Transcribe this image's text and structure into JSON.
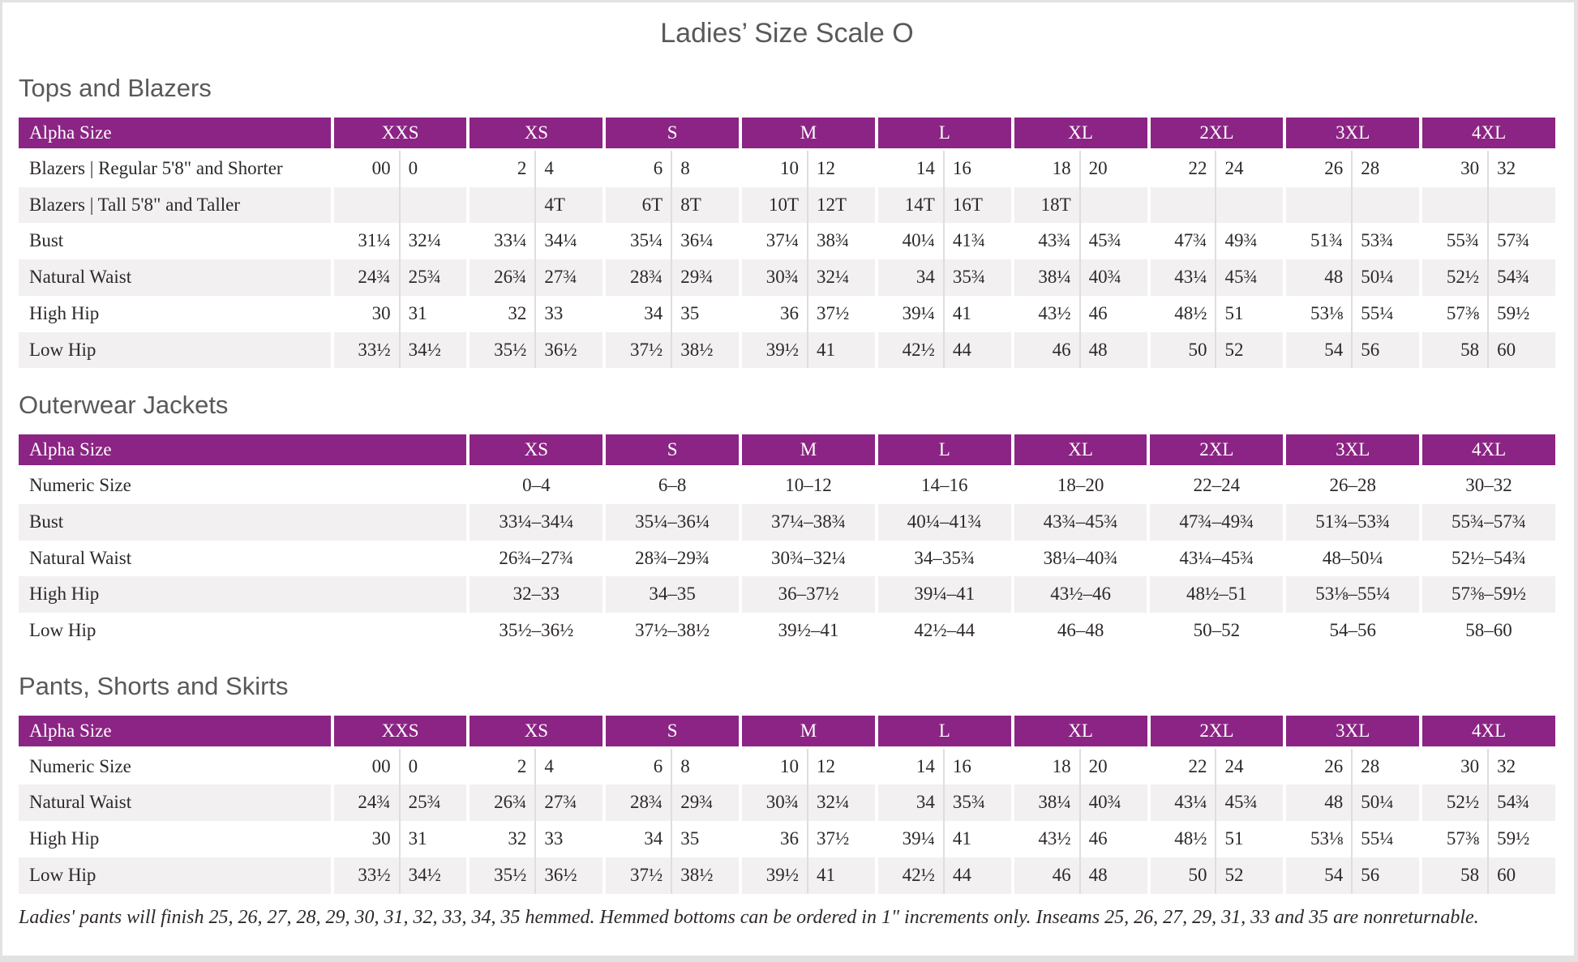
{
  "page": {
    "title": "Ladies’ Size Scale O",
    "footnote": "Ladies' pants will finish 25, 26, 27, 28, 29, 30, 31, 32, 33, 34, 35 hemmed. Hemmed bottoms can be ordered in 1\" increments only. Inseams 25, 26, 27, 29, 31, 33 and 35 are nonreturnable."
  },
  "colors": {
    "header_bg": "#8b2484",
    "row_stripe": "#f2f0f0",
    "heading_text": "#58595b",
    "body_text": "#2d2829"
  },
  "tables": [
    {
      "id": "tops-and-blazers",
      "heading": "Tops and Blazers",
      "corner_label": "Alpha Size",
      "paired": true,
      "columns": [
        "XXS",
        "XS",
        "S",
        "M",
        "L",
        "XL",
        "2XL",
        "3XL",
        "4XL"
      ],
      "rows": [
        {
          "label": "Blazers | Regular 5'8\" and Shorter",
          "values": [
            [
              "00",
              "0"
            ],
            [
              "2",
              "4"
            ],
            [
              "6",
              "8"
            ],
            [
              "10",
              "12"
            ],
            [
              "14",
              "16"
            ],
            [
              "18",
              "20"
            ],
            [
              "22",
              "24"
            ],
            [
              "26",
              "28"
            ],
            [
              "30",
              "32"
            ]
          ]
        },
        {
          "label": "Blazers | Tall 5'8\" and Taller",
          "values": [
            [
              "",
              ""
            ],
            [
              "",
              "4T"
            ],
            [
              "6T",
              "8T"
            ],
            [
              "10T",
              "12T"
            ],
            [
              "14T",
              "16T"
            ],
            [
              "18T",
              ""
            ],
            [
              "",
              ""
            ],
            [
              "",
              ""
            ],
            [
              "",
              ""
            ]
          ]
        },
        {
          "label": "Bust",
          "values": [
            [
              "31¼",
              "32¼"
            ],
            [
              "33¼",
              "34¼"
            ],
            [
              "35¼",
              "36¼"
            ],
            [
              "37¼",
              "38¾"
            ],
            [
              "40¼",
              "41¾"
            ],
            [
              "43¾",
              "45¾"
            ],
            [
              "47¾",
              "49¾"
            ],
            [
              "51¾",
              "53¾"
            ],
            [
              "55¾",
              "57¾"
            ]
          ]
        },
        {
          "label": "Natural Waist",
          "values": [
            [
              "24¾",
              "25¾"
            ],
            [
              "26¾",
              "27¾"
            ],
            [
              "28¾",
              "29¾"
            ],
            [
              "30¾",
              "32¼"
            ],
            [
              "34",
              "35¾"
            ],
            [
              "38¼",
              "40¾"
            ],
            [
              "43¼",
              "45¾"
            ],
            [
              "48",
              "50¼"
            ],
            [
              "52½",
              "54¾"
            ]
          ]
        },
        {
          "label": "High Hip",
          "values": [
            [
              "30",
              "31"
            ],
            [
              "32",
              "33"
            ],
            [
              "34",
              "35"
            ],
            [
              "36",
              "37½"
            ],
            [
              "39¼",
              "41"
            ],
            [
              "43½",
              "46"
            ],
            [
              "48½",
              "51"
            ],
            [
              "53⅛",
              "55¼"
            ],
            [
              "57⅜",
              "59½"
            ]
          ]
        },
        {
          "label": "Low Hip",
          "values": [
            [
              "33½",
              "34½"
            ],
            [
              "35½",
              "36½"
            ],
            [
              "37½",
              "38½"
            ],
            [
              "39½",
              "41"
            ],
            [
              "42½",
              "44"
            ],
            [
              "46",
              "48"
            ],
            [
              "50",
              "52"
            ],
            [
              "54",
              "56"
            ],
            [
              "58",
              "60"
            ]
          ]
        }
      ]
    },
    {
      "id": "outerwear-jackets",
      "heading": "Outerwear Jackets",
      "corner_label": "Alpha Size",
      "paired": false,
      "columns": [
        "XS",
        "S",
        "M",
        "L",
        "XL",
        "2XL",
        "3XL",
        "4XL"
      ],
      "rows": [
        {
          "label": "Numeric Size",
          "values": [
            "0–4",
            "6–8",
            "10–12",
            "14–16",
            "18–20",
            "22–24",
            "26–28",
            "30–32"
          ]
        },
        {
          "label": "Bust",
          "values": [
            "33¼–34¼",
            "35¼–36¼",
            "37¼–38¾",
            "40¼–41¾",
            "43¾–45¾",
            "47¾–49¾",
            "51¾–53¾",
            "55¾–57¾"
          ]
        },
        {
          "label": "Natural Waist",
          "values": [
            "26¾–27¾",
            "28¾–29¾",
            "30¾–32¼",
            "34–35¾",
            "38¼–40¾",
            "43¼–45¾",
            "48–50¼",
            "52½–54¾"
          ]
        },
        {
          "label": "High Hip",
          "values": [
            "32–33",
            "34–35",
            "36–37½",
            "39¼–41",
            "43½–46",
            "48½–51",
            "53⅛–55¼",
            "57⅜–59½"
          ]
        },
        {
          "label": "Low Hip",
          "values": [
            "35½–36½",
            "37½–38½",
            "39½–41",
            "42½–44",
            "46–48",
            "50–52",
            "54–56",
            "58–60"
          ]
        }
      ]
    },
    {
      "id": "pants-shorts-and-skirts",
      "heading": "Pants, Shorts and Skirts",
      "corner_label": "Alpha Size",
      "paired": true,
      "columns": [
        "XXS",
        "XS",
        "S",
        "M",
        "L",
        "XL",
        "2XL",
        "3XL",
        "4XL"
      ],
      "rows": [
        {
          "label": "Numeric Size",
          "values": [
            [
              "00",
              "0"
            ],
            [
              "2",
              "4"
            ],
            [
              "6",
              "8"
            ],
            [
              "10",
              "12"
            ],
            [
              "14",
              "16"
            ],
            [
              "18",
              "20"
            ],
            [
              "22",
              "24"
            ],
            [
              "26",
              "28"
            ],
            [
              "30",
              "32"
            ]
          ]
        },
        {
          "label": "Natural Waist",
          "values": [
            [
              "24¾",
              "25¾"
            ],
            [
              "26¾",
              "27¾"
            ],
            [
              "28¾",
              "29¾"
            ],
            [
              "30¾",
              "32¼"
            ],
            [
              "34",
              "35¾"
            ],
            [
              "38¼",
              "40¾"
            ],
            [
              "43¼",
              "45¾"
            ],
            [
              "48",
              "50¼"
            ],
            [
              "52½",
              "54¾"
            ]
          ]
        },
        {
          "label": "High Hip",
          "values": [
            [
              "30",
              "31"
            ],
            [
              "32",
              "33"
            ],
            [
              "34",
              "35"
            ],
            [
              "36",
              "37½"
            ],
            [
              "39¼",
              "41"
            ],
            [
              "43½",
              "46"
            ],
            [
              "48½",
              "51"
            ],
            [
              "53⅛",
              "55¼"
            ],
            [
              "57⅜",
              "59½"
            ]
          ]
        },
        {
          "label": "Low Hip",
          "values": [
            [
              "33½",
              "34½"
            ],
            [
              "35½",
              "36½"
            ],
            [
              "37½",
              "38½"
            ],
            [
              "39½",
              "41"
            ],
            [
              "42½",
              "44"
            ],
            [
              "46",
              "48"
            ],
            [
              "50",
              "52"
            ],
            [
              "54",
              "56"
            ],
            [
              "58",
              "60"
            ]
          ]
        }
      ]
    }
  ]
}
